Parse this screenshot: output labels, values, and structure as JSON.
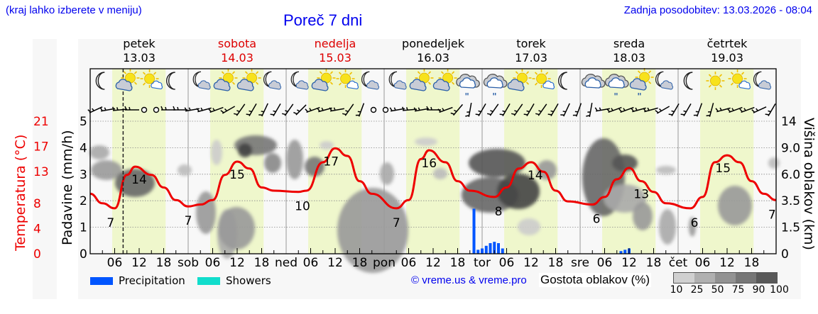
{
  "header": {
    "hint": "(kraj lahko izberete v meniju)",
    "title": "Poreč 7 dni",
    "updated": "Zadnja posodobitev: 13.03.2026 - 08:04"
  },
  "days": [
    {
      "name": "petek",
      "date": "13.03",
      "weekend": false,
      "short": ""
    },
    {
      "name": "sobota",
      "date": "14.03",
      "weekend": true,
      "short": "sob"
    },
    {
      "name": "nedelja",
      "date": "15.03",
      "weekend": true,
      "short": "ned"
    },
    {
      "name": "ponedeljek",
      "date": "16.03",
      "weekend": false,
      "short": "pon"
    },
    {
      "name": "torek",
      "date": "17.03",
      "weekend": false,
      "short": "tor"
    },
    {
      "name": "sreda",
      "date": "18.03",
      "weekend": false,
      "short": "sre"
    },
    {
      "name": "četrtek",
      "date": "19.03",
      "weekend": false,
      "short": "čet"
    }
  ],
  "weather_icons": [
    [
      "moon",
      "sun-cloud",
      "sun-small-cloud",
      "moon"
    ],
    [
      "moon-cloud",
      "sun-cloud",
      "sun-cloud",
      "moon-cloud"
    ],
    [
      "moon-cloud",
      "sun-cloud",
      "sun-small-cloud",
      "moon-cloud"
    ],
    [
      "moon-cloud",
      "sun-cloud",
      "sun-cloud",
      "cloud-rain"
    ],
    [
      "cloud-rain",
      "sun-cloud",
      "sun-small-cloud",
      "moon"
    ],
    [
      "cloud",
      "cloud-rain",
      "sun-cloud-rain",
      "moon-cloud"
    ],
    [
      "moon",
      "sun",
      "sun-small-cloud",
      "moon-cloud"
    ]
  ],
  "axes": {
    "temp_label": "Temperatura (°C)",
    "temp_ticks": [
      "21",
      "17",
      "13",
      "8",
      "4",
      "0"
    ],
    "precip_label": "Padavine (mm/h)",
    "precip_ticks": [
      "5",
      "4",
      "3",
      "2",
      "1",
      "0"
    ],
    "cloud_height_label": "Višina oblakov (km)",
    "cloud_height_ticks": [
      "14",
      "9.0",
      "6.0",
      "3.5",
      "1.5",
      "0"
    ],
    "hour_ticks": [
      "06",
      "12",
      "18"
    ]
  },
  "legend": {
    "precipitation": "Precipitation",
    "showers": "Showers",
    "precipitation_color": "#0055ff",
    "showers_color": "#11ddcc",
    "copyright": "© vreme.us & vreme.pro",
    "cloud_density_label": "Gostota oblakov (%)",
    "cloud_density_ticks": [
      "10",
      "25",
      "50",
      "75",
      "90",
      "100"
    ],
    "cloud_density_colors": [
      "#d0d0d0",
      "#b0b0b0",
      "#929292",
      "#767676",
      "#595959"
    ]
  },
  "chart_data": {
    "type": "line",
    "title": "Poreč 7 dni",
    "xlabel": "",
    "ylabel": "Padavine (mm/h) / Temperatura (°C)",
    "x_range": [
      "13.03 00:00",
      "20.03 00:00"
    ],
    "ylim_precip": [
      0,
      5
    ],
    "ylim_temp": [
      0,
      21
    ],
    "grid": true,
    "current_time_marker": "13.03 08:04",
    "series": [
      {
        "name": "Temperatura (°C)",
        "color": "#ee0000",
        "points": [
          [
            "13.03 00",
            9.5
          ],
          [
            "13.03 03",
            8.0
          ],
          [
            "13.03 06",
            7.2
          ],
          [
            "13.03 09",
            12.5
          ],
          [
            "13.03 11",
            13.8
          ],
          [
            "13.03 15",
            12.5
          ],
          [
            "13.03 18",
            10.5
          ],
          [
            "13.03 21",
            8.5
          ],
          [
            "14.03 00",
            7.5
          ],
          [
            "14.03 03",
            7.8
          ],
          [
            "14.03 06",
            8.5
          ],
          [
            "14.03 09",
            12.5
          ],
          [
            "14.03 12",
            14.6
          ],
          [
            "14.03 15",
            13.5
          ],
          [
            "14.03 18",
            10.5
          ],
          [
            "14.03 21",
            10.0
          ],
          [
            "15.03 03",
            9.8
          ],
          [
            "15.03 05",
            10.0
          ],
          [
            "15.03 09",
            14.5
          ],
          [
            "15.03 12",
            16.7
          ],
          [
            "15.03 15",
            15.5
          ],
          [
            "15.03 18",
            11.5
          ],
          [
            "15.03 21",
            9.5
          ],
          [
            "16.03 03",
            7.2
          ],
          [
            "16.03 06",
            8.5
          ],
          [
            "16.03 09",
            15.0
          ],
          [
            "16.03 11",
            16.4
          ],
          [
            "16.03 15",
            14.5
          ],
          [
            "16.03 18",
            11.5
          ],
          [
            "16.03 21",
            10.0
          ],
          [
            "17.03 03",
            9.0
          ],
          [
            "17.03 06",
            10.5
          ],
          [
            "17.03 09",
            13.5
          ],
          [
            "17.03 12",
            14.5
          ],
          [
            "17.03 15",
            13.0
          ],
          [
            "17.03 18",
            10.0
          ],
          [
            "17.03 21",
            8.3
          ],
          [
            "18.03 03",
            7.8
          ],
          [
            "18.03 06",
            9.0
          ],
          [
            "18.03 09",
            11.8
          ],
          [
            "18.03 12",
            13.6
          ],
          [
            "18.03 15",
            11.5
          ],
          [
            "18.03 18",
            9.8
          ],
          [
            "18.03 21",
            8.0
          ],
          [
            "19.03 03",
            7.2
          ],
          [
            "19.03 06",
            9.0
          ],
          [
            "19.03 09",
            14.5
          ],
          [
            "19.03 12",
            15.6
          ],
          [
            "19.03 15",
            14.5
          ],
          [
            "19.03 18",
            11.5
          ],
          [
            "19.03 21",
            9.5
          ],
          [
            "20.03 00",
            8.5
          ]
        ],
        "labels": [
          {
            "at": "13.03 05",
            "value": 7
          },
          {
            "at": "13.03 12",
            "value": 14
          },
          {
            "at": "14.03 00",
            "value": 7
          },
          {
            "at": "14.03 12",
            "value": 15
          },
          {
            "at": "15.03 04",
            "value": 10
          },
          {
            "at": "15.03 11",
            "value": 17
          },
          {
            "at": "16.03 03",
            "value": 7
          },
          {
            "at": "16.03 11",
            "value": 16
          },
          {
            "at": "17.03 04",
            "value": 8
          },
          {
            "at": "17.03 13",
            "value": 14
          },
          {
            "at": "18.03 04",
            "value": 6
          },
          {
            "at": "18.03 15",
            "value": 13
          },
          {
            "at": "19.03 04",
            "value": 6
          },
          {
            "at": "19.03 11",
            "value": 15
          },
          {
            "at": "19.03 23",
            "value": 7
          }
        ]
      },
      {
        "name": "Precipitation (mm/h)",
        "color": "#0055ff",
        "points": [
          [
            "16.03 22",
            1.7
          ],
          [
            "16.03 23",
            0.15
          ],
          [
            "17.03 00",
            0.2
          ],
          [
            "17.03 01",
            0.3
          ],
          [
            "17.03 02",
            0.4
          ],
          [
            "17.03 03",
            0.45
          ],
          [
            "17.03 04",
            0.4
          ],
          [
            "17.03 05",
            0.2
          ],
          [
            "18.03 10",
            0.1
          ],
          [
            "18.03 11",
            0.15
          ],
          [
            "18.03 12",
            0.2
          ]
        ]
      },
      {
        "name": "Showers (mm/h)",
        "color": "#11ddcc",
        "points": []
      }
    ],
    "cloud_density_legend": [
      "10",
      "25",
      "50",
      "75",
      "90",
      "100"
    ],
    "right_axis": {
      "label": "Višina oblakov (km)",
      "ticks": [
        "0",
        "1.5",
        "3.5",
        "6.0",
        "9.0",
        "14"
      ]
    }
  }
}
